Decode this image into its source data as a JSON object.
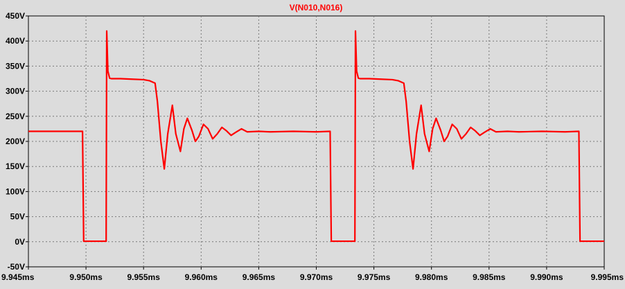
{
  "chart_data": {
    "type": "line",
    "title": "",
    "xlabel": "",
    "ylabel": "",
    "xlim": [
      9.945,
      9.995
    ],
    "ylim": [
      -50,
      450
    ],
    "grid": true,
    "x_ticks": [
      {
        "value": 9.945,
        "label": "9.945ms"
      },
      {
        "value": 9.95,
        "label": "9.950ms"
      },
      {
        "value": 9.955,
        "label": "9.955ms"
      },
      {
        "value": 9.96,
        "label": "9.960ms"
      },
      {
        "value": 9.965,
        "label": "9.965ms"
      },
      {
        "value": 9.97,
        "label": "9.970ms"
      },
      {
        "value": 9.975,
        "label": "9.975ms"
      },
      {
        "value": 9.98,
        "label": "9.980ms"
      },
      {
        "value": 9.985,
        "label": "9.985ms"
      },
      {
        "value": 9.99,
        "label": "9.990ms"
      },
      {
        "value": 9.995,
        "label": "9.995ms"
      }
    ],
    "y_ticks": [
      {
        "value": -50,
        "label": "-50V"
      },
      {
        "value": 0,
        "label": "0V"
      },
      {
        "value": 50,
        "label": "50V"
      },
      {
        "value": 100,
        "label": "100V"
      },
      {
        "value": 150,
        "label": "150V"
      },
      {
        "value": 200,
        "label": "200V"
      },
      {
        "value": 250,
        "label": "250V"
      },
      {
        "value": 300,
        "label": "300V"
      },
      {
        "value": 350,
        "label": "350V"
      },
      {
        "value": 400,
        "label": "400V"
      },
      {
        "value": 450,
        "label": "450V"
      }
    ],
    "series": [
      {
        "name": "V(N010,N016)",
        "color": "#ff0000",
        "x": [
          9.945,
          9.9497,
          9.94975,
          9.9498,
          9.95175,
          9.9518,
          9.9519,
          9.95205,
          9.9522,
          9.9525,
          9.953,
          9.954,
          9.955,
          9.9555,
          9.956,
          9.9562,
          9.9565,
          9.9568,
          9.9571,
          9.9575,
          9.9578,
          9.9582,
          9.9585,
          9.9588,
          9.9592,
          9.9595,
          9.9598,
          9.9602,
          9.9606,
          9.961,
          9.9614,
          9.9618,
          9.9622,
          9.9626,
          9.963,
          9.9635,
          9.964,
          9.965,
          9.966,
          9.968,
          9.97,
          9.9712,
          9.97125,
          9.9713,
          9.97335,
          9.9734,
          9.9735,
          9.97365,
          9.9738,
          9.9741,
          9.9746,
          9.9756,
          9.9766,
          9.9771,
          9.9776,
          9.9778,
          9.9781,
          9.9784,
          9.9787,
          9.9791,
          9.9794,
          9.9798,
          9.9801,
          9.9804,
          9.9808,
          9.9811,
          9.9814,
          9.9818,
          9.9822,
          9.9826,
          9.983,
          9.9834,
          9.9838,
          9.9842,
          9.9846,
          9.9851,
          9.9856,
          9.9866,
          9.9876,
          9.9896,
          9.9916,
          9.9928,
          9.99285,
          9.9929,
          9.995
        ],
        "values": [
          220,
          220,
          110,
          1,
          1,
          420,
          340,
          326,
          325,
          325,
          325,
          324,
          323,
          321,
          316,
          280,
          200,
          145,
          215,
          272,
          215,
          180,
          225,
          246,
          222,
          200,
          210,
          234,
          225,
          205,
          215,
          228,
          221,
          212,
          218,
          225,
          219,
          220,
          219,
          220,
          219,
          220,
          110,
          1,
          1,
          420,
          340,
          326,
          325,
          325,
          325,
          324,
          323,
          321,
          316,
          280,
          200,
          145,
          215,
          272,
          215,
          180,
          225,
          246,
          222,
          200,
          210,
          234,
          225,
          205,
          215,
          228,
          221,
          212,
          218,
          225,
          219,
          220,
          219,
          220,
          219,
          220,
          110,
          1,
          1
        ]
      }
    ]
  }
}
